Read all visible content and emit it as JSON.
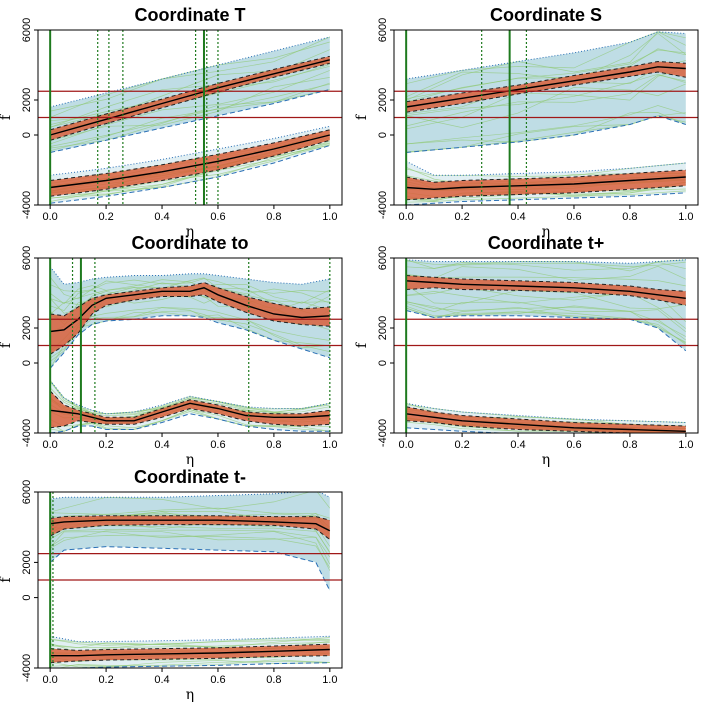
{
  "colors": {
    "band_outer": "#a9d2dc",
    "band_outer_edge": "#2a6fb5",
    "band_core": "#d9603c",
    "median": "#000000",
    "green_lines": "#1e7a1e",
    "curves": "#8dc86e",
    "hline": "#a01818"
  },
  "chart_data": [
    {
      "type": "line",
      "title": "Coordinate T",
      "xlabel": "η",
      "ylabel": "f",
      "xlim": [
        0,
        1
      ],
      "ylim": [
        -4000,
        6000
      ],
      "xticks": [
        "0.0",
        "0.2",
        "0.4",
        "0.6",
        "0.8",
        "1.0"
      ],
      "yticks": [
        "-4000",
        "0",
        "2000",
        "6000"
      ],
      "hlines": [
        2500,
        1000
      ],
      "vlines_solid": [
        0.0,
        0.55
      ],
      "vlines_dotted": [
        0.17,
        0.21,
        0.26,
        0.52,
        0.56,
        0.6
      ],
      "series": [
        {
          "name": "upper",
          "x": [
            0,
            0.2,
            0.4,
            0.6,
            0.8,
            1.0
          ],
          "median": [
            0,
            900,
            1800,
            2700,
            3500,
            4300
          ],
          "core_low": [
            -300,
            650,
            1550,
            2450,
            3300,
            4100
          ],
          "core_high": [
            300,
            1200,
            2050,
            2950,
            3750,
            4500
          ],
          "outer_low": [
            -1000,
            -300,
            400,
            1100,
            1800,
            2600
          ],
          "outer_high": [
            1600,
            2400,
            3200,
            4000,
            4800,
            5600
          ]
        },
        {
          "name": "lower",
          "x": [
            0,
            0.2,
            0.4,
            0.6,
            0.8,
            1.0
          ],
          "median": [
            -3000,
            -2600,
            -2100,
            -1500,
            -800,
            0
          ],
          "core_low": [
            -3500,
            -3100,
            -2600,
            -2000,
            -1200,
            -300
          ],
          "core_high": [
            -2600,
            -2200,
            -1700,
            -1100,
            -450,
            300
          ],
          "outer_low": [
            -3900,
            -3500,
            -3000,
            -2400,
            -1600,
            -600
          ],
          "outer_high": [
            -2300,
            -1900,
            -1400,
            -800,
            -200,
            500
          ]
        }
      ]
    },
    {
      "type": "line",
      "title": "Coordinate S",
      "xlabel": "η",
      "ylabel": "f",
      "xlim": [
        0,
        1
      ],
      "ylim": [
        -4000,
        6000
      ],
      "xticks": [
        "0.0",
        "0.2",
        "0.4",
        "0.6",
        "0.8",
        "1.0"
      ],
      "yticks": [
        "-4000",
        "0",
        "2000",
        "6000"
      ],
      "hlines": [
        2500,
        1000
      ],
      "vlines_solid": [
        0.0,
        0.37
      ],
      "vlines_dotted": [
        0.27,
        0.43
      ],
      "series": [
        {
          "name": "upper",
          "x": [
            0,
            0.2,
            0.4,
            0.6,
            0.8,
            0.9,
            1.0
          ],
          "median": [
            1600,
            2100,
            2600,
            3100,
            3600,
            3900,
            3800
          ],
          "core_low": [
            1300,
            1800,
            2350,
            2850,
            3350,
            3600,
            3300
          ],
          "core_high": [
            1900,
            2400,
            2850,
            3400,
            3900,
            4200,
            4100
          ],
          "outer_low": [
            -1000,
            -700,
            -400,
            0,
            600,
            1100,
            600
          ],
          "outer_high": [
            3200,
            3700,
            4200,
            4700,
            5300,
            5900,
            5800
          ]
        },
        {
          "name": "lower",
          "x": [
            0,
            0.1,
            0.2,
            0.4,
            0.6,
            0.8,
            1.0
          ],
          "median": [
            -3000,
            -3100,
            -3000,
            -2900,
            -2800,
            -2600,
            -2400
          ],
          "core_low": [
            -3700,
            -3600,
            -3500,
            -3400,
            -3300,
            -3100,
            -2900
          ],
          "core_high": [
            -2400,
            -2700,
            -2600,
            -2500,
            -2400,
            -2200,
            -2000
          ],
          "outer_low": [
            -4000,
            -3900,
            -3800,
            -3700,
            -3600,
            -3500,
            -3300
          ],
          "outer_high": [
            -1500,
            -2300,
            -2300,
            -2200,
            -2100,
            -1900,
            -1600
          ]
        }
      ]
    },
    {
      "type": "line",
      "title": "Coordinate to",
      "xlabel": "η",
      "ylabel": "f",
      "xlim": [
        0,
        1
      ],
      "ylim": [
        -4000,
        6000
      ],
      "xticks": [
        "0.0",
        "0.2",
        "0.4",
        "0.6",
        "0.8",
        "1.0"
      ],
      "yticks": [
        "-4000",
        "0",
        "2000",
        "6000"
      ],
      "hlines": [
        2500,
        1000
      ],
      "vlines_solid": [
        0.0,
        0.11
      ],
      "vlines_dotted": [
        0.08,
        0.16,
        0.71,
        1.0
      ],
      "series": [
        {
          "name": "upper",
          "x": [
            0,
            0.05,
            0.1,
            0.15,
            0.2,
            0.3,
            0.4,
            0.5,
            0.55,
            0.6,
            0.7,
            0.8,
            0.9,
            1.0
          ],
          "median": [
            1800,
            1900,
            2500,
            3300,
            3700,
            3900,
            4100,
            4100,
            4300,
            3900,
            3300,
            2800,
            2600,
            2700
          ],
          "core_low": [
            500,
            1000,
            1700,
            2800,
            3300,
            3600,
            3800,
            3800,
            3900,
            3500,
            2900,
            2400,
            2200,
            2100
          ],
          "core_high": [
            2800,
            2700,
            3200,
            3700,
            3900,
            4100,
            4300,
            4400,
            4600,
            4300,
            3800,
            3400,
            3100,
            3200
          ],
          "outer_low": [
            -300,
            600,
            1600,
            2200,
            2400,
            2500,
            2700,
            2700,
            2600,
            2300,
            1900,
            1300,
            800,
            300
          ],
          "outer_high": [
            5500,
            4500,
            4600,
            4800,
            4900,
            5000,
            5000,
            5100,
            5100,
            5000,
            4800,
            4600,
            4500,
            4800
          ]
        },
        {
          "name": "lower",
          "x": [
            0,
            0.05,
            0.1,
            0.15,
            0.2,
            0.3,
            0.4,
            0.5,
            0.6,
            0.7,
            0.8,
            0.9,
            1.0
          ],
          "median": [
            -2700,
            -2800,
            -2900,
            -3100,
            -3300,
            -3300,
            -2800,
            -2300,
            -2600,
            -3000,
            -3100,
            -3100,
            -3000
          ],
          "core_low": [
            -3700,
            -3600,
            -3300,
            -3400,
            -3500,
            -3500,
            -3100,
            -2600,
            -2900,
            -3300,
            -3500,
            -3600,
            -3500
          ],
          "core_high": [
            -1600,
            -2400,
            -2700,
            -2900,
            -3100,
            -3100,
            -2600,
            -2100,
            -2400,
            -2800,
            -2900,
            -2900,
            -2700
          ],
          "outer_low": [
            -4000,
            -3900,
            -3600,
            -3600,
            -3800,
            -3800,
            -3400,
            -2900,
            -3200,
            -3600,
            -3800,
            -3900,
            -3900
          ],
          "outer_high": [
            -1000,
            -2000,
            -2400,
            -2700,
            -2900,
            -2800,
            -2400,
            -1900,
            -2200,
            -2500,
            -2600,
            -2600,
            -2300
          ]
        }
      ]
    },
    {
      "type": "line",
      "title": "Coordinate t+",
      "xlabel": "η",
      "ylabel": "f",
      "xlim": [
        0,
        1
      ],
      "ylim": [
        -4000,
        6000
      ],
      "xticks": [
        "0.0",
        "0.2",
        "0.4",
        "0.6",
        "0.8",
        "1.0"
      ],
      "yticks": [
        "-4000",
        "0",
        "2000",
        "6000"
      ],
      "hlines": [
        2500,
        1000
      ],
      "vlines_solid": [
        0.0
      ],
      "vlines_dotted": [],
      "series": [
        {
          "name": "upper",
          "x": [
            0,
            0.1,
            0.2,
            0.4,
            0.6,
            0.8,
            0.9,
            1.0
          ],
          "median": [
            4700,
            4600,
            4500,
            4400,
            4300,
            4100,
            3900,
            3700
          ],
          "core_low": [
            4200,
            4300,
            4200,
            4150,
            4050,
            3850,
            3600,
            3300
          ],
          "core_high": [
            5000,
            4900,
            4800,
            4700,
            4600,
            4400,
            4200,
            4100
          ],
          "outer_low": [
            3000,
            2600,
            2700,
            2700,
            2600,
            2500,
            2000,
            700
          ],
          "outer_high": [
            5900,
            5800,
            5800,
            5800,
            5800,
            5700,
            5800,
            5900
          ]
        },
        {
          "name": "lower",
          "x": [
            0,
            0.1,
            0.2,
            0.4,
            0.6,
            0.8,
            1.0
          ],
          "median": [
            -2900,
            -3100,
            -3300,
            -3500,
            -3700,
            -3800,
            -3900
          ],
          "core_low": [
            -3300,
            -3400,
            -3600,
            -3800,
            -3900,
            -4000,
            -4100
          ],
          "core_high": [
            -2500,
            -2800,
            -3000,
            -3200,
            -3400,
            -3500,
            -3600
          ],
          "outer_low": [
            -3700,
            -3800,
            -3900,
            -4050,
            -4150,
            -4200,
            -4200
          ],
          "outer_high": [
            -2300,
            -2600,
            -2800,
            -3000,
            -3200,
            -3300,
            -3400
          ]
        }
      ]
    },
    {
      "type": "line",
      "title": "Coordinate t-",
      "xlabel": "η",
      "ylabel": "f",
      "xlim": [
        0,
        1
      ],
      "ylim": [
        -4000,
        6000
      ],
      "xticks": [
        "0.0",
        "0.2",
        "0.4",
        "0.6",
        "0.8",
        "1.0"
      ],
      "yticks": [
        "-4000",
        "0",
        "2000",
        "6000"
      ],
      "hlines": [
        2500,
        1000
      ],
      "vlines_solid": [
        0.0
      ],
      "vlines_dotted": [
        0.01
      ],
      "series": [
        {
          "name": "upper",
          "x": [
            0,
            0.05,
            0.2,
            0.4,
            0.6,
            0.8,
            0.95,
            1.0
          ],
          "median": [
            4200,
            4300,
            4400,
            4400,
            4400,
            4300,
            4200,
            3800
          ],
          "core_low": [
            3500,
            3900,
            4100,
            4150,
            4150,
            4100,
            3900,
            3300
          ],
          "core_high": [
            4500,
            4600,
            4650,
            4650,
            4650,
            4600,
            4600,
            4400
          ],
          "outer_low": [
            2000,
            2700,
            2900,
            2800,
            2700,
            2600,
            2000,
            400
          ],
          "outer_high": [
            5600,
            5700,
            5700,
            5700,
            5800,
            5900,
            6100,
            5700
          ]
        },
        {
          "name": "lower",
          "x": [
            0,
            0.1,
            0.2,
            0.4,
            0.6,
            0.8,
            1.0
          ],
          "median": [
            -3300,
            -3300,
            -3250,
            -3200,
            -3150,
            -3050,
            -2950
          ],
          "core_low": [
            -3700,
            -3600,
            -3550,
            -3500,
            -3450,
            -3350,
            -3300
          ],
          "core_high": [
            -2900,
            -3000,
            -2950,
            -2900,
            -2850,
            -2750,
            -2650
          ],
          "outer_low": [
            -4100,
            -4000,
            -3950,
            -3900,
            -3850,
            -3750,
            -3700
          ],
          "outer_high": [
            -2200,
            -2500,
            -2500,
            -2450,
            -2400,
            -2300,
            -2200
          ]
        }
      ]
    }
  ]
}
